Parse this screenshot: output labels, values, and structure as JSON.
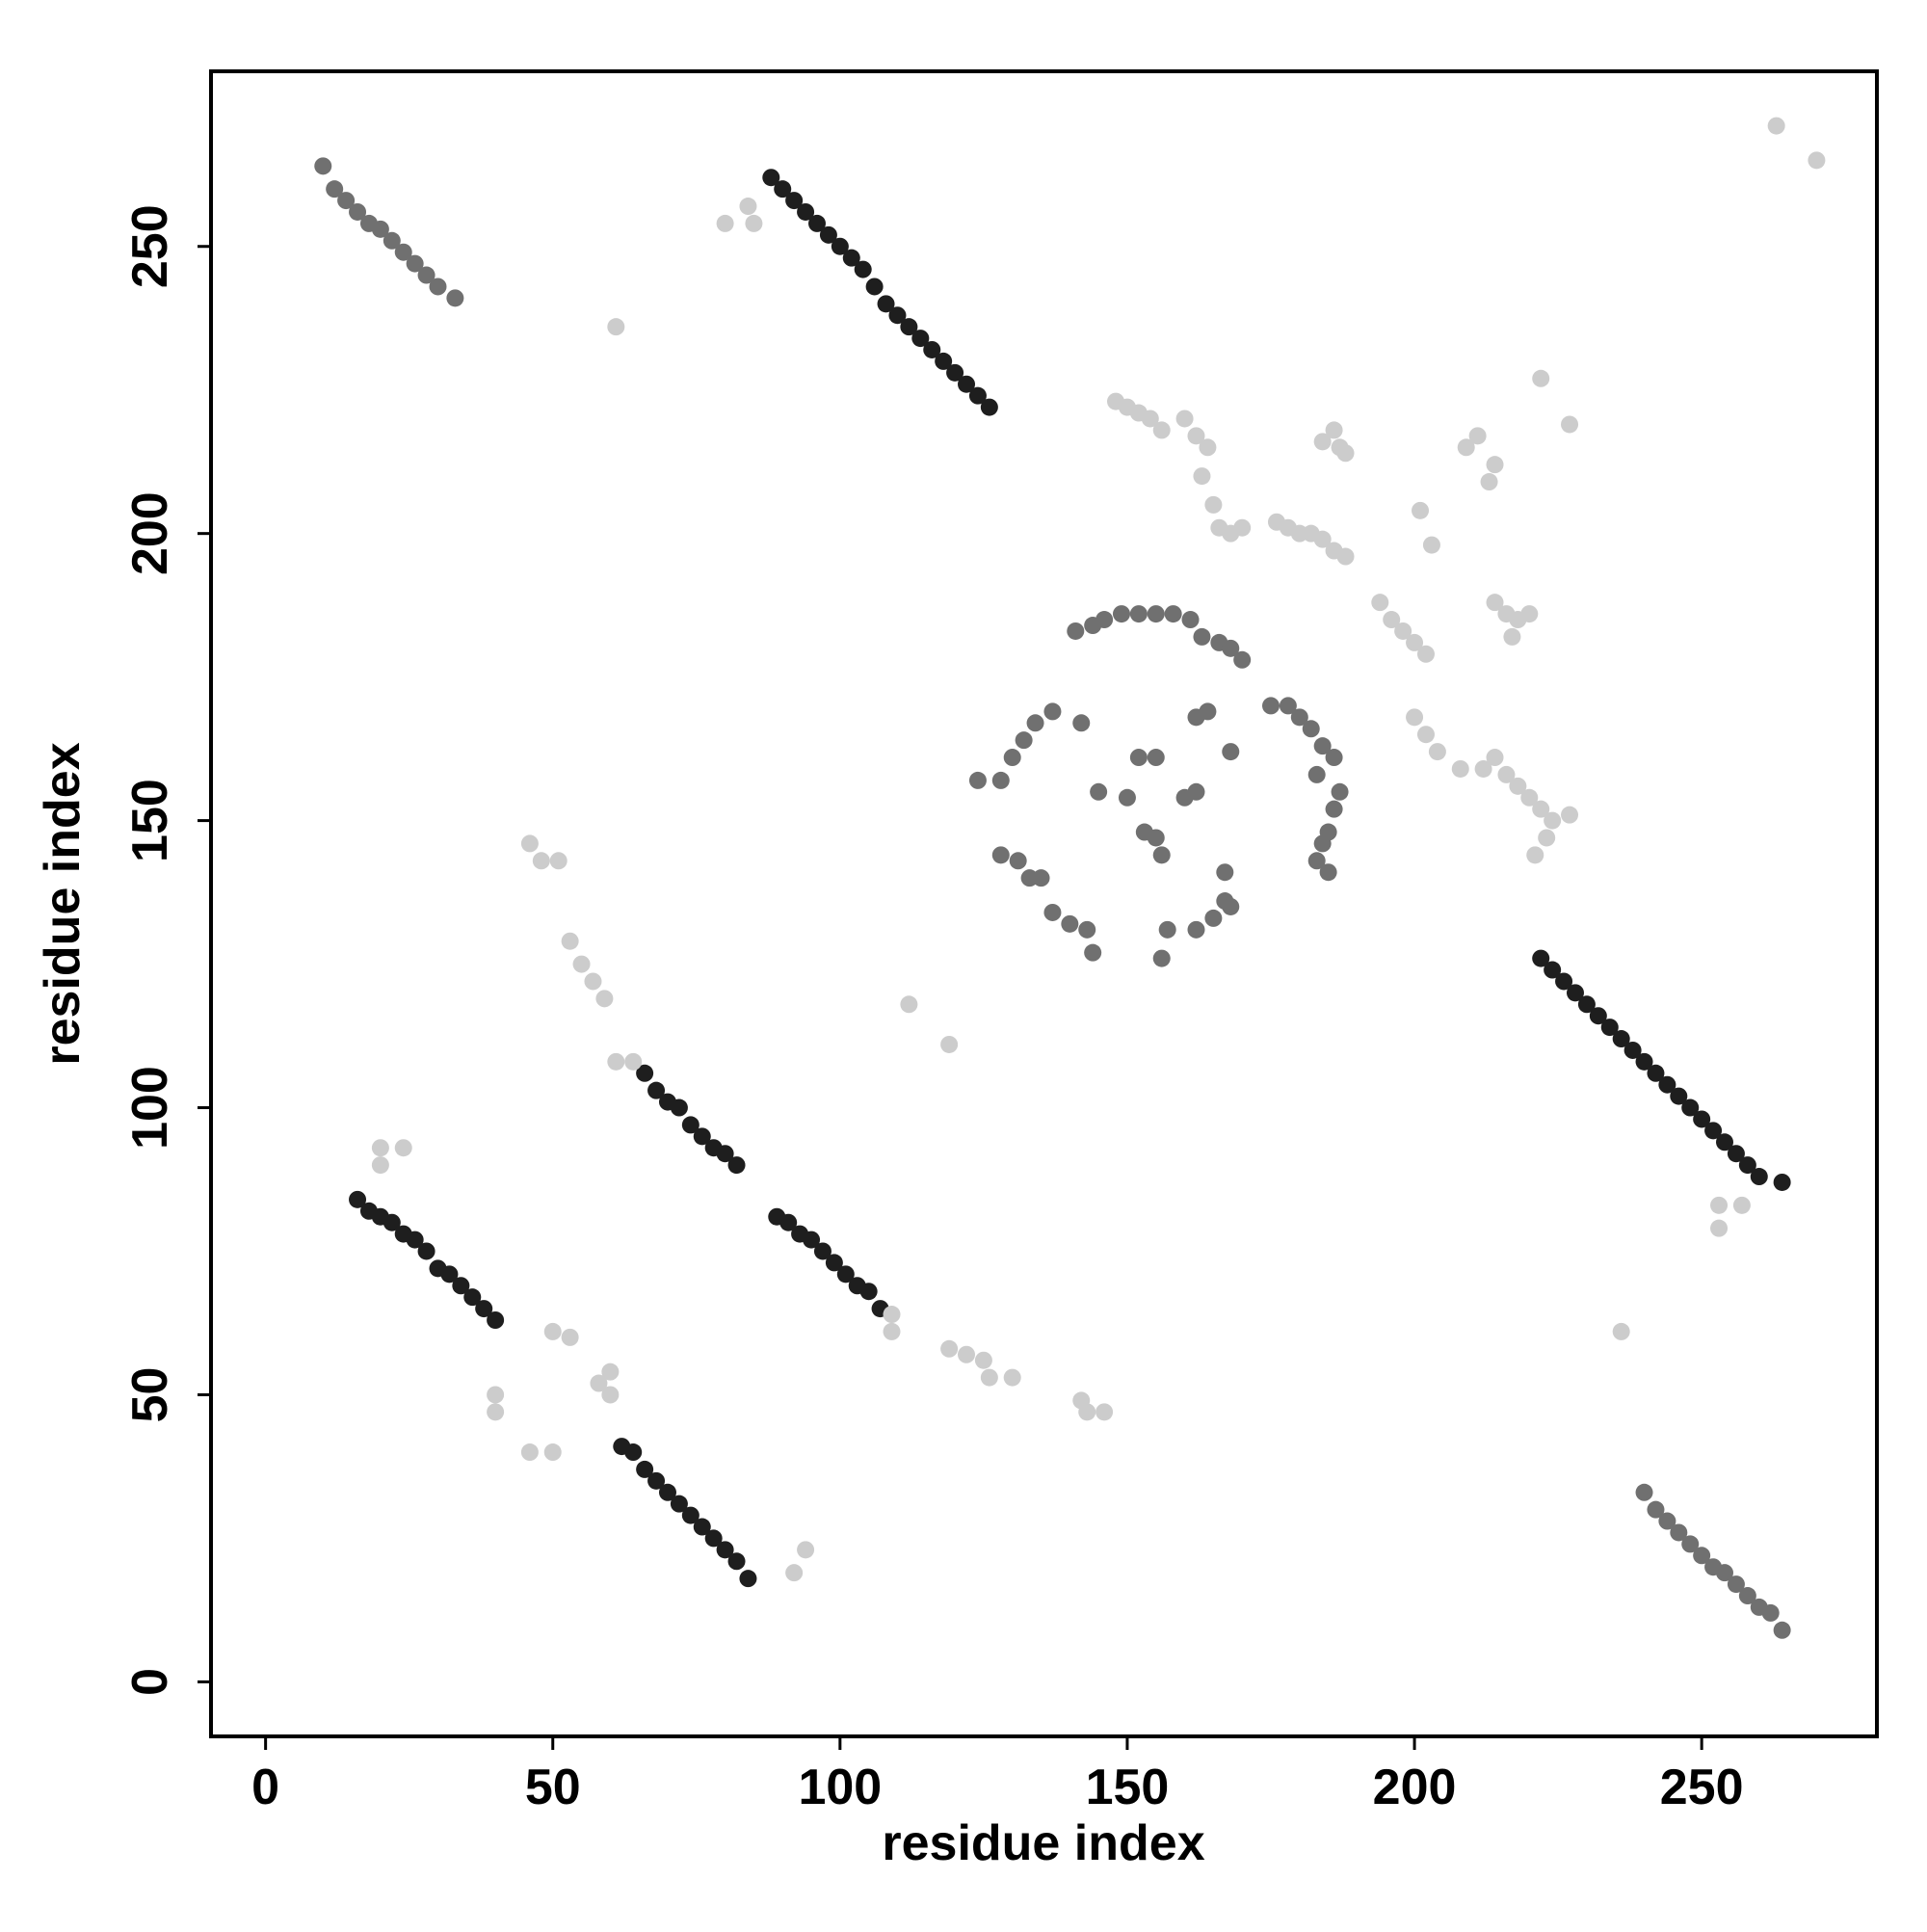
{
  "chart_data": {
    "type": "scatter",
    "xlabel": "residue index",
    "ylabel": "residue index",
    "xlim": [
      -9.5,
      280.5
    ],
    "ylim": [
      -9.5,
      280.5
    ],
    "xticks": [
      0,
      50,
      100,
      150,
      200,
      250
    ],
    "yticks": [
      0,
      50,
      100,
      150,
      200,
      250
    ],
    "series": [
      {
        "color": "#1e1e1e",
        "x": [
          16,
          18,
          20,
          22,
          24,
          26,
          28,
          30,
          32,
          34,
          36,
          38,
          40,
          62,
          64,
          66,
          68,
          70,
          72,
          74,
          76,
          78,
          80,
          82,
          84,
          66,
          68,
          70,
          72,
          74,
          76,
          78,
          80,
          82,
          89,
          91,
          93,
          95,
          97,
          99,
          101,
          103,
          105,
          107,
          88,
          90,
          92,
          94,
          96,
          98,
          100,
          102,
          104,
          106,
          108,
          110,
          112,
          114,
          116,
          118,
          120,
          122,
          124,
          126,
          222,
          224,
          226,
          228,
          230,
          232,
          234,
          236,
          238,
          240,
          242,
          244,
          246,
          248,
          250,
          252,
          254,
          256,
          258,
          260,
          264
        ],
        "y": [
          84,
          82,
          81,
          80,
          78,
          77,
          75,
          72,
          71,
          69,
          67,
          65,
          63,
          41,
          40,
          37,
          35,
          33,
          31,
          29,
          27,
          25,
          23,
          21,
          18,
          106,
          103,
          101,
          100,
          97,
          95,
          93,
          92,
          90,
          81,
          80,
          78,
          77,
          75,
          73,
          71,
          69,
          68,
          65,
          262,
          260,
          258,
          256,
          254,
          252,
          250,
          248,
          246,
          243,
          240,
          238,
          236,
          234,
          232,
          230,
          228,
          226,
          224,
          222,
          126,
          124,
          122,
          120,
          118,
          116,
          114,
          112,
          110,
          108,
          106,
          104,
          102,
          100,
          98,
          96,
          94,
          92,
          90,
          88,
          87
        ]
      },
      {
        "color": "#707070",
        "x": [
          10,
          12,
          14,
          16,
          18,
          20,
          22,
          24,
          26,
          28,
          30,
          33,
          240,
          242,
          244,
          246,
          248,
          250,
          252,
          254,
          256,
          258,
          260,
          262,
          264,
          124,
          128,
          130,
          132,
          134,
          137,
          142,
          128,
          131,
          133,
          135,
          137,
          140,
          143,
          144,
          150,
          145,
          152,
          155,
          153,
          155,
          156,
          157,
          156,
          162,
          165,
          167,
          168,
          167,
          160,
          162,
          162,
          164,
          168,
          141,
          144,
          146,
          149,
          152,
          155,
          158,
          161,
          163,
          166,
          168,
          170,
          175,
          178,
          180,
          182,
          184,
          186,
          183,
          187,
          186,
          185,
          184,
          183,
          185
        ],
        "y": [
          264,
          260,
          258,
          256,
          254,
          253,
          251,
          249,
          247,
          245,
          243,
          241,
          33,
          30,
          28,
          26,
          24,
          22,
          20,
          19,
          17,
          15,
          13,
          12,
          9,
          157,
          157,
          161,
          164,
          167,
          169,
          167,
          144,
          143,
          140,
          140,
          134,
          132,
          131,
          127,
          154,
          155,
          161,
          161,
          148,
          147,
          144,
          131,
          126,
          131,
          133,
          136,
          135,
          141,
          154,
          155,
          168,
          169,
          162,
          183,
          184,
          185,
          186,
          186,
          186,
          186,
          185,
          182,
          181,
          180,
          178,
          170,
          170,
          168,
          166,
          163,
          161,
          158,
          155,
          152,
          148,
          146,
          143,
          141
        ]
      },
      {
        "color": "#cccccc",
        "x": [
          80,
          61,
          85,
          84,
          46,
          48,
          51,
          53,
          55,
          57,
          59,
          61,
          64,
          58,
          60,
          53,
          50,
          40,
          40,
          46,
          50,
          60,
          20,
          20,
          24,
          94,
          92,
          109,
          109,
          119,
          122,
          125,
          126,
          130,
          112,
          119,
          142,
          143,
          146,
          236,
          253,
          253,
          257,
          263,
          270,
          227,
          222,
          211,
          209,
          214,
          213,
          201,
          203,
          148,
          150,
          152,
          154,
          156,
          160,
          162,
          164,
          163,
          165,
          166,
          168,
          170,
          176,
          178,
          180,
          182,
          184,
          186,
          188,
          186,
          187,
          188,
          184,
          194,
          196,
          198,
          200,
          202,
          200,
          202,
          204,
          208,
          212,
          214,
          216,
          218,
          220,
          222,
          224,
          227,
          221,
          223,
          214,
          216,
          218,
          220,
          217
        ],
        "y": [
          254,
          236,
          254,
          257,
          146,
          143,
          143,
          129,
          125,
          122,
          119,
          108,
          108,
          52,
          50,
          60,
          61,
          50,
          47,
          40,
          40,
          54,
          93,
          90,
          93,
          23,
          19,
          64,
          61,
          58,
          57,
          56,
          53,
          53,
          118,
          111,
          49,
          47,
          47,
          61,
          83,
          79,
          83,
          271,
          265,
          219,
          227,
          217,
          215,
          212,
          209,
          204,
          198,
          223,
          222,
          221,
          220,
          218,
          220,
          217,
          215,
          210,
          205,
          201,
          200,
          201,
          202,
          201,
          200,
          200,
          199,
          197,
          196,
          218,
          215,
          214,
          216,
          188,
          185,
          183,
          181,
          179,
          168,
          165,
          162,
          159,
          159,
          161,
          158,
          156,
          154,
          152,
          150,
          151,
          144,
          147,
          188,
          186,
          185,
          186,
          182
        ]
      }
    ]
  }
}
